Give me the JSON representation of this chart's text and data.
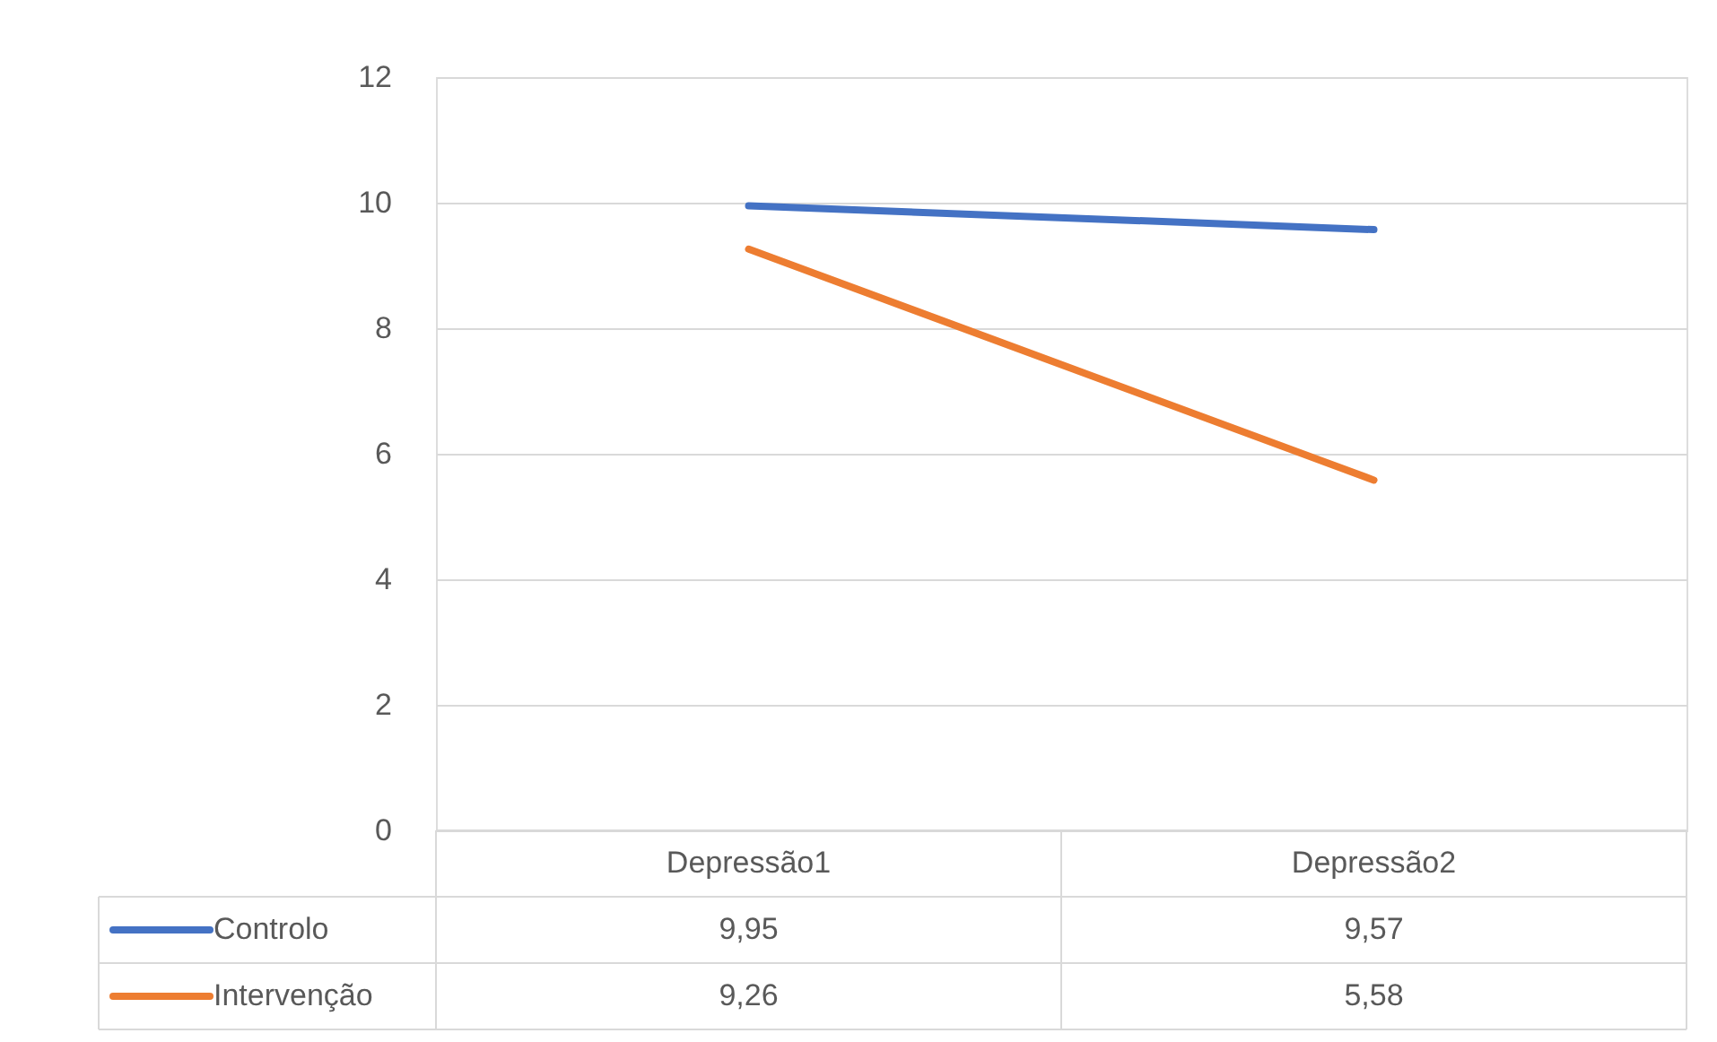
{
  "chart_data": {
    "type": "line",
    "categories": [
      "Depressão1",
      "Depressão2"
    ],
    "series": [
      {
        "name": "Controlo",
        "color": "#4472c4",
        "values": [
          9.95,
          9.57
        ],
        "value_labels": [
          "9,95",
          "9,57"
        ]
      },
      {
        "name": "Intervenção",
        "color": "#ed7d31",
        "values": [
          9.26,
          5.58
        ],
        "value_labels": [
          "9,26",
          "5,58"
        ]
      }
    ],
    "ylim": [
      0,
      12
    ],
    "yticks": [
      0,
      2,
      4,
      6,
      8,
      10,
      12
    ],
    "grid": "y",
    "legend": "bottom",
    "marker": "none",
    "line_style": "solid"
  }
}
